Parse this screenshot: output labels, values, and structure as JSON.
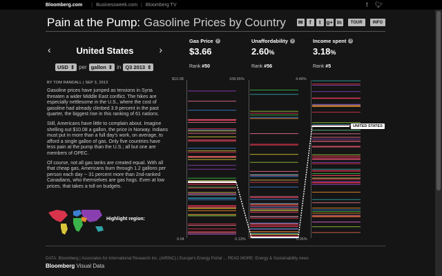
{
  "topbar": {
    "brand": "Bloomberg.com",
    "links": [
      "Businessweek.com",
      "Bloomberg TV"
    ],
    "icons": [
      "facebook-icon",
      "twitter-icon"
    ]
  },
  "header": {
    "title_main": "Pain at the Pump:",
    "title_sub": "Gasoline Prices by Country",
    "share_icons": [
      "email-icon",
      "facebook-icon",
      "twitter-icon",
      "googleplus-icon",
      "linkedin-icon"
    ],
    "tour_label": "TOUR",
    "info_label": "INFO"
  },
  "country": {
    "name": "United States",
    "prev": "‹",
    "next": "›"
  },
  "controls": {
    "currency": "USD",
    "per": "per",
    "unit": "gallon",
    "in": "in",
    "period": "Q3 2013"
  },
  "article": {
    "byline": "BY TOM RANDALL | SEP 3, 2013",
    "paragraphs": [
      "Gasoline prices have jumped as tensions in Syria threaten a wider Middle East conflict. The hikes are especially nettlesome in the U.S., where the cost of gasoline had already climbed 3.9 percent in the past quarter, the biggest rise in this ranking of 61 nations.",
      "Still, Americans have little to complain about. Imagine shelling out $10.08 a gallon, the price in Norway. Indians must put in more than a full day's work, on average, to afford a single gallon of gas. Only five countries have less pain at the pump than the U.S.; all but one are members of OPEC.",
      "Of course, not all gas tanks are created equal. With all that cheap gas, Americans burn through 1.2 gallons per person each day -- 31 percent more than 2nd-ranked Canadians, who themselves are gas hogs. Even at low prices, that takes a toll on budgets."
    ],
    "highlight_label": "Highlight region:"
  },
  "metrics": [
    {
      "label": "Gas Price",
      "value": "$3.66",
      "rank_label": "Rank",
      "rank": "#50",
      "axis_top": "$10.08",
      "axis_bottom": "0.04"
    },
    {
      "label": "Unaffordability",
      "value": "2.60",
      "value_unit": "%",
      "rank_label": "Rank",
      "rank": "#56",
      "axis_top": "108.65%",
      "axis_bottom": "0.13%"
    },
    {
      "label": "Income spent",
      "value": "3.18",
      "value_unit": "%",
      "rank_label": "Rank",
      "rank": "#5",
      "axis_top": "4.48%",
      "axis_bottom": "0.05%"
    }
  ],
  "us_label": "UNITED STATES",
  "colors": {
    "red": "#d9344c",
    "pink": "#e86f8a",
    "purple": "#8a3fb0",
    "blue": "#3a7fd0",
    "teal": "#2fa3a8",
    "green": "#3bb34a",
    "lime": "#8fc23a",
    "orange": "#e38b2c",
    "yellow": "#d8c53a",
    "white": "#ffffff"
  },
  "footer": {
    "sources": "DATA: Bloomberg | Associates for International Research Inc. (AIRINC) | Europe's Energy Portal ... READ MORE: Energy & Sustainability news",
    "brand_bold": "Bloomberg",
    "brand_rest": "Visual Data"
  }
}
